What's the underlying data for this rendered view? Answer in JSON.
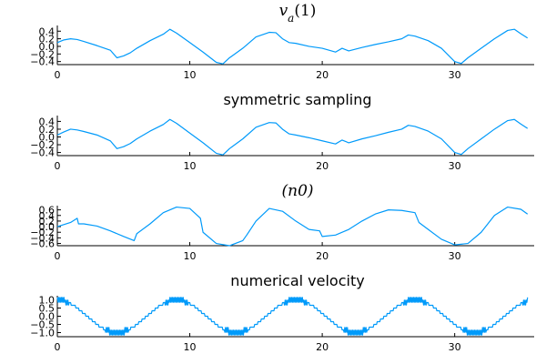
{
  "chart_data": [
    {
      "type": "line",
      "title": "v_a(1)",
      "title_style": "math",
      "color": "#009AFA",
      "xlim": [
        0,
        36
      ],
      "ylim": [
        -0.48,
        0.55
      ],
      "xticks": [
        0,
        10,
        20,
        30
      ],
      "xtick_labels": [
        "0",
        "10",
        "20",
        "30"
      ],
      "yticks": [
        0.4,
        0.2,
        0.0,
        -0.2,
        -0.4
      ],
      "ytick_labels": [
        "0.4",
        "0.2",
        "0.0",
        "−0.2",
        "−0.4"
      ],
      "grid": false,
      "legend": "none",
      "x": [
        0,
        0.5,
        1.0,
        1.5,
        2.0,
        3.0,
        4.0,
        4.5,
        5.0,
        5.5,
        6.0,
        7.0,
        8.0,
        8.5,
        9.0,
        10.0,
        11.0,
        12.0,
        12.5,
        13.0,
        14.0,
        15.0,
        16.0,
        16.5,
        17.0,
        17.5,
        18.0,
        19.0,
        20.0,
        21.0,
        21.5,
        22.0,
        23.0,
        24.0,
        25.0,
        26.0,
        26.5,
        27.0,
        28.0,
        29.0,
        30.0,
        30.5,
        31.0,
        32.0,
        33.0,
        34.0,
        34.5,
        35.0,
        35.5
      ],
      "y": [
        0.1,
        0.17,
        0.2,
        0.18,
        0.13,
        0.02,
        -0.1,
        -0.3,
        -0.25,
        -0.17,
        -0.05,
        0.15,
        0.32,
        0.45,
        0.35,
        0.1,
        -0.15,
        -0.42,
        -0.46,
        -0.3,
        -0.05,
        0.25,
        0.37,
        0.36,
        0.2,
        0.1,
        0.08,
        0.0,
        -0.05,
        -0.15,
        -0.05,
        -0.12,
        -0.03,
        0.05,
        0.12,
        0.2,
        0.3,
        0.27,
        0.15,
        -0.05,
        -0.4,
        -0.45,
        -0.3,
        -0.05,
        0.2,
        0.42,
        0.45,
        0.33,
        0.22
      ]
    },
    {
      "type": "line",
      "title": "symmetric sampling",
      "title_style": "text",
      "color": "#009AFA",
      "xlim": [
        0,
        36
      ],
      "ylim": [
        -0.48,
        0.55
      ],
      "xticks": [
        0,
        10,
        20,
        30
      ],
      "xtick_labels": [
        "0",
        "10",
        "20",
        "30"
      ],
      "yticks": [
        0.4,
        0.2,
        0.0,
        -0.2,
        -0.4
      ],
      "ytick_labels": [
        "0.4",
        "0.2",
        "0.0",
        "−0.2",
        "−0.4"
      ],
      "grid": false,
      "legend": "none",
      "x": [
        0,
        0.5,
        1.0,
        1.5,
        2.0,
        3.0,
        4.0,
        4.5,
        5.0,
        5.5,
        6.0,
        7.0,
        8.0,
        8.5,
        9.0,
        10.0,
        11.0,
        12.0,
        12.5,
        13.0,
        14.0,
        15.0,
        16.0,
        16.5,
        17.0,
        17.5,
        18.0,
        19.0,
        20.0,
        21.0,
        21.5,
        22.0,
        23.0,
        24.0,
        25.0,
        26.0,
        26.5,
        27.0,
        28.0,
        29.0,
        30.0,
        30.5,
        31.0,
        32.0,
        33.0,
        34.0,
        34.5,
        35.0,
        35.5
      ],
      "y": [
        0.05,
        0.13,
        0.2,
        0.18,
        0.14,
        0.05,
        -0.1,
        -0.3,
        -0.25,
        -0.17,
        -0.05,
        0.15,
        0.32,
        0.45,
        0.35,
        0.1,
        -0.15,
        -0.42,
        -0.46,
        -0.3,
        -0.05,
        0.25,
        0.37,
        0.36,
        0.2,
        0.08,
        0.05,
        -0.02,
        -0.1,
        -0.18,
        -0.08,
        -0.15,
        -0.05,
        0.03,
        0.12,
        0.2,
        0.3,
        0.27,
        0.15,
        -0.05,
        -0.4,
        -0.45,
        -0.3,
        -0.05,
        0.2,
        0.42,
        0.45,
        0.33,
        0.22
      ]
    },
    {
      "type": "line",
      "title": "(n0)",
      "title_style": "math",
      "color": "#009AFA",
      "xlim": [
        0,
        36
      ],
      "ylim": [
        -0.68,
        0.75
      ],
      "xticks": [
        0,
        10,
        20,
        30
      ],
      "xtick_labels": [
        "0",
        "10",
        "20",
        "30"
      ],
      "yticks": [
        0.6,
        0.4,
        0.2,
        0.0,
        -0.2,
        -0.4,
        -0.6
      ],
      "ytick_labels": [
        "0.6",
        "0.4",
        "0.2",
        "0.0",
        "−0.2",
        "−0.4",
        "−0.6"
      ],
      "grid": false,
      "legend": "none",
      "x": [
        0,
        1.0,
        1.5,
        1.6,
        2.0,
        3.0,
        4.0,
        5.0,
        5.8,
        6.0,
        7.0,
        8.0,
        9.0,
        10.0,
        10.8,
        11.0,
        12.0,
        13.0,
        14.0,
        14.3,
        15.0,
        16.0,
        17.0,
        18.0,
        19.0,
        19.8,
        20.0,
        21.0,
        22.0,
        23.0,
        24.0,
        25.0,
        26.0,
        27.0,
        27.3,
        28.0,
        29.0,
        30.0,
        31.0,
        32.0,
        33.0,
        34.0,
        35.0,
        35.5
      ],
      "y": [
        0.0,
        0.15,
        0.3,
        0.1,
        0.1,
        0.02,
        -0.15,
        -0.35,
        -0.5,
        -0.25,
        0.1,
        0.5,
        0.7,
        0.65,
        0.3,
        -0.2,
        -0.6,
        -0.68,
        -0.5,
        -0.3,
        0.2,
        0.65,
        0.55,
        0.2,
        -0.1,
        -0.15,
        -0.35,
        -0.3,
        -0.1,
        0.2,
        0.45,
        0.6,
        0.58,
        0.5,
        0.15,
        -0.1,
        -0.45,
        -0.65,
        -0.6,
        -0.2,
        0.4,
        0.7,
        0.62,
        0.45
      ]
    },
    {
      "type": "line",
      "title": "numerical velocity",
      "title_style": "text",
      "color": "#009AFA",
      "xlim": [
        0,
        36
      ],
      "ylim": [
        -1.25,
        1.25
      ],
      "xticks": [
        0,
        10,
        20,
        30
      ],
      "xtick_labels": [
        "0",
        "10",
        "20",
        "30"
      ],
      "yticks": [
        1.0,
        0.5,
        0.0,
        -0.5,
        -1.0
      ],
      "ytick_labels": [
        "1.0",
        "0.5",
        "0.0",
        "−0.5",
        "−1.0"
      ],
      "grid": false,
      "legend": "none",
      "period": 9,
      "x_end": 35.5,
      "step": 0.05,
      "quantization": 0.1667,
      "chatter_amplitude": 0.1667
    }
  ]
}
